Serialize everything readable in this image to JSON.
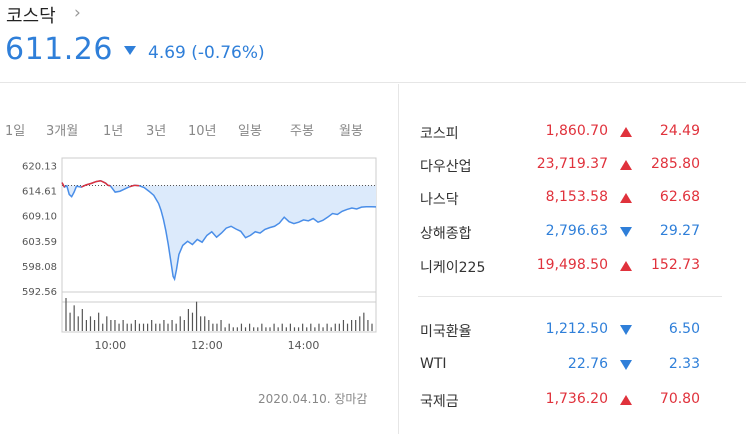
{
  "header": {
    "title": "코스닥",
    "chevron": "›",
    "price": "611.26",
    "change": "4.69 (-0.76%)",
    "direction": "down"
  },
  "tabs": [
    {
      "label": "1일",
      "active": true
    },
    {
      "label": "3개월",
      "active": false
    },
    {
      "label": "1년",
      "active": false
    },
    {
      "label": "3년",
      "active": false
    },
    {
      "label": "10년",
      "active": false
    },
    {
      "label": "일봉",
      "active": false
    },
    {
      "label": "주봉",
      "active": false
    },
    {
      "label": "월봉",
      "active": false
    }
  ],
  "chart_data": {
    "type": "line",
    "y_ticks": [
      "620.13",
      "614.61",
      "609.10",
      "603.59",
      "598.08",
      "592.56"
    ],
    "x_ticks": [
      "10:00",
      "12:00",
      "14:00"
    ],
    "previous_close": 615.95,
    "ylim": [
      592.56,
      622.0
    ],
    "xlim": [
      9.0,
      15.5
    ],
    "series": [
      {
        "values": [
          [
            9.0,
            616.6
          ],
          [
            9.05,
            615.6
          ],
          [
            9.1,
            615.9
          ],
          [
            9.15,
            614.0
          ],
          [
            9.2,
            613.5
          ],
          [
            9.25,
            614.5
          ],
          [
            9.3,
            615.8
          ],
          [
            9.4,
            615.6
          ],
          [
            9.5,
            616.1
          ],
          [
            9.6,
            616.4
          ],
          [
            9.7,
            616.8
          ],
          [
            9.8,
            617.0
          ],
          [
            9.9,
            616.5
          ],
          [
            9.95,
            616.0
          ],
          [
            10.0,
            615.9
          ],
          [
            10.05,
            615.2
          ],
          [
            10.1,
            614.5
          ],
          [
            10.2,
            614.7
          ],
          [
            10.3,
            615.2
          ],
          [
            10.4,
            615.7
          ],
          [
            10.5,
            616.0
          ],
          [
            10.6,
            615.9
          ],
          [
            10.7,
            615.5
          ],
          [
            10.8,
            614.7
          ],
          [
            10.9,
            613.8
          ],
          [
            11.0,
            612.0
          ],
          [
            11.05,
            610.5
          ],
          [
            11.1,
            608.5
          ],
          [
            11.15,
            606.0
          ],
          [
            11.2,
            603.0
          ],
          [
            11.25,
            599.5
          ],
          [
            11.3,
            596.0
          ],
          [
            11.33,
            595.4
          ],
          [
            11.37,
            597.5
          ],
          [
            11.42,
            600.8
          ],
          [
            11.5,
            602.8
          ],
          [
            11.6,
            603.7
          ],
          [
            11.7,
            603.0
          ],
          [
            11.8,
            604.1
          ],
          [
            11.9,
            603.5
          ],
          [
            12.0,
            605.0
          ],
          [
            12.1,
            605.8
          ],
          [
            12.2,
            604.6
          ],
          [
            12.3,
            605.5
          ],
          [
            12.4,
            606.6
          ],
          [
            12.5,
            607.0
          ],
          [
            12.6,
            606.4
          ],
          [
            12.7,
            605.9
          ],
          [
            12.8,
            604.5
          ],
          [
            12.9,
            605.0
          ],
          [
            13.0,
            605.8
          ],
          [
            13.1,
            605.5
          ],
          [
            13.2,
            606.3
          ],
          [
            13.3,
            606.7
          ],
          [
            13.4,
            607.0
          ],
          [
            13.5,
            607.7
          ],
          [
            13.6,
            609.0
          ],
          [
            13.7,
            608.0
          ],
          [
            13.8,
            607.6
          ],
          [
            13.9,
            607.9
          ],
          [
            14.0,
            608.4
          ],
          [
            14.1,
            608.2
          ],
          [
            14.2,
            608.7
          ],
          [
            14.3,
            607.9
          ],
          [
            14.4,
            608.3
          ],
          [
            14.5,
            609.0
          ],
          [
            14.6,
            609.8
          ],
          [
            14.7,
            609.6
          ],
          [
            14.8,
            610.3
          ],
          [
            14.9,
            610.7
          ],
          [
            15.0,
            611.0
          ],
          [
            15.1,
            610.8
          ],
          [
            15.2,
            611.2
          ],
          [
            15.3,
            611.3
          ],
          [
            15.4,
            611.3
          ],
          [
            15.5,
            611.26
          ]
        ]
      }
    ],
    "volume": [
      9,
      5,
      7,
      4,
      6,
      3,
      4,
      3,
      5,
      2,
      4,
      3,
      3,
      2,
      3,
      2,
      2,
      3,
      2,
      2,
      2,
      3,
      2,
      2,
      3,
      2,
      3,
      2,
      4,
      3,
      6,
      5,
      8,
      4,
      4,
      3,
      2,
      2,
      3,
      1,
      2,
      1,
      1,
      2,
      1,
      2,
      1,
      1,
      2,
      1,
      1,
      2,
      1,
      2,
      1,
      2,
      1,
      1,
      2,
      1,
      2,
      1,
      2,
      1,
      2,
      1,
      2,
      2,
      3,
      2,
      3,
      3,
      4,
      5,
      3,
      2
    ],
    "line_color_up": "#e0323c",
    "line_color_down": "#4a8ee8",
    "fill_color": "#dceafb",
    "grid": false
  },
  "footer": {
    "date": "2020.04.10. 장마감"
  },
  "markets": [
    {
      "name": "코스피",
      "value": "1,860.70",
      "change": "24.49",
      "dir": "up"
    },
    {
      "name": "다우산업",
      "value": "23,719.37",
      "change": "285.80",
      "dir": "up"
    },
    {
      "name": "나스닥",
      "value": "8,153.58",
      "change": "62.68",
      "dir": "up"
    },
    {
      "name": "상해종합",
      "value": "2,796.63",
      "change": "29.27",
      "dir": "down"
    },
    {
      "name": "니케이225",
      "value": "19,498.50",
      "change": "152.73",
      "dir": "up"
    }
  ],
  "commodities": [
    {
      "name": "미국환율",
      "value": "1,212.50",
      "change": "6.50",
      "dir": "down"
    },
    {
      "name": "WTI",
      "value": "22.76",
      "change": "2.33",
      "dir": "down"
    },
    {
      "name": "국제금",
      "value": "1,736.20",
      "change": "70.80",
      "dir": "up"
    }
  ]
}
